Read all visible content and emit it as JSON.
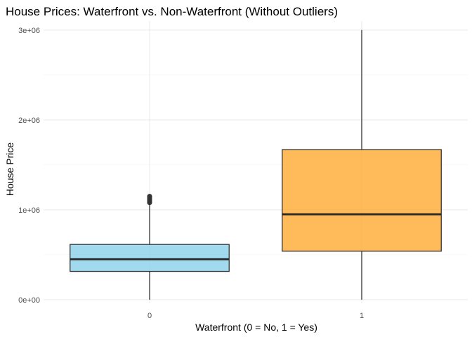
{
  "chart_data": {
    "type": "boxplot",
    "title": "House Prices: Waterfront vs. Non-Waterfront (Without Outliers)",
    "xlabel": "Waterfront (0 = No, 1 = Yes)",
    "ylabel": "House Price",
    "categories": [
      "0",
      "1"
    ],
    "y_ticks": [
      {
        "value": 0,
        "label": "0e+00"
      },
      {
        "value": 1000000,
        "label": "1e+06"
      },
      {
        "value": 2000000,
        "label": "2e+06"
      },
      {
        "value": 3000000,
        "label": "3e+06"
      }
    ],
    "ylim": [
      -40000,
      3100000
    ],
    "grid": true,
    "boxes": [
      {
        "category": "0",
        "color": "#87CEEB",
        "whisker_low": 0,
        "q1": 315000,
        "median": 450000,
        "q3": 615000,
        "whisker_high": 1070000,
        "outliers": [
          1080000,
          1095000,
          1110000,
          1125000,
          1140000,
          1150000
        ]
      },
      {
        "category": "1",
        "color": "#FFA62B",
        "whisker_low": 0,
        "q1": 540000,
        "median": 950000,
        "q3": 1670000,
        "whisker_high": 3000000,
        "outliers": []
      }
    ]
  }
}
